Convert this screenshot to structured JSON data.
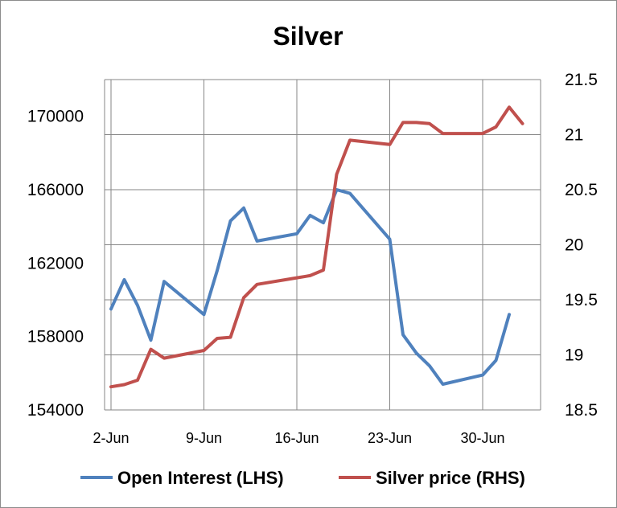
{
  "chart_data": {
    "type": "line",
    "title": "Silver",
    "grid": true,
    "legend_position": "bottom",
    "x_ticks": [
      "2-Jun",
      "9-Jun",
      "16-Jun",
      "23-Jun",
      "30-Jun"
    ],
    "y_left": {
      "ticks": [
        "154000",
        "158000",
        "162000",
        "166000",
        "170000"
      ],
      "range": [
        154000,
        172000
      ]
    },
    "y_right": {
      "ticks": [
        "18.5",
        "19",
        "19.5",
        "20",
        "20.5",
        "21",
        "21.5"
      ],
      "range": [
        18.5,
        21.5
      ]
    },
    "series": [
      {
        "name": "Open Interest (LHS)",
        "axis": "left",
        "color": "#4f81bd",
        "points": [
          {
            "x": "2-Jun",
            "y": 159500
          },
          {
            "x": "3-Jun",
            "y": 161100
          },
          {
            "x": "4-Jun",
            "y": 159700
          },
          {
            "x": "5-Jun",
            "y": 157800
          },
          {
            "x": "6-Jun",
            "y": 161000
          },
          {
            "x": "9-Jun",
            "y": 159200
          },
          {
            "x": "10-Jun",
            "y": 161600
          },
          {
            "x": "11-Jun",
            "y": 164300
          },
          {
            "x": "12-Jun",
            "y": 165000
          },
          {
            "x": "13-Jun",
            "y": 163200
          },
          {
            "x": "16-Jun",
            "y": 163600
          },
          {
            "x": "17-Jun",
            "y": 164600
          },
          {
            "x": "18-Jun",
            "y": 164200
          },
          {
            "x": "19-Jun",
            "y": 166000
          },
          {
            "x": "20-Jun",
            "y": 165800
          },
          {
            "x": "23-Jun",
            "y": 163300
          },
          {
            "x": "24-Jun",
            "y": 158100
          },
          {
            "x": "25-Jun",
            "y": 157100
          },
          {
            "x": "26-Jun",
            "y": 156400
          },
          {
            "x": "27-Jun",
            "y": 155400
          },
          {
            "x": "30-Jun",
            "y": 155900
          },
          {
            "x": "1-Jul",
            "y": 156700
          },
          {
            "x": "2-Jul",
            "y": 159200
          }
        ]
      },
      {
        "name": "Silver price (RHS)",
        "axis": "right",
        "color": "#c0504d",
        "points": [
          {
            "x": "2-Jun",
            "y": 18.71
          },
          {
            "x": "3-Jun",
            "y": 18.73
          },
          {
            "x": "4-Jun",
            "y": 18.77
          },
          {
            "x": "5-Jun",
            "y": 19.05
          },
          {
            "x": "6-Jun",
            "y": 18.97
          },
          {
            "x": "9-Jun",
            "y": 19.04
          },
          {
            "x": "10-Jun",
            "y": 19.15
          },
          {
            "x": "11-Jun",
            "y": 19.16
          },
          {
            "x": "12-Jun",
            "y": 19.52
          },
          {
            "x": "13-Jun",
            "y": 19.64
          },
          {
            "x": "16-Jun",
            "y": 19.7
          },
          {
            "x": "17-Jun",
            "y": 19.72
          },
          {
            "x": "18-Jun",
            "y": 19.77
          },
          {
            "x": "19-Jun",
            "y": 20.64
          },
          {
            "x": "20-Jun",
            "y": 20.95
          },
          {
            "x": "23-Jun",
            "y": 20.91
          },
          {
            "x": "24-Jun",
            "y": 21.11
          },
          {
            "x": "25-Jun",
            "y": 21.11
          },
          {
            "x": "26-Jun",
            "y": 21.1
          },
          {
            "x": "27-Jun",
            "y": 21.01
          },
          {
            "x": "30-Jun",
            "y": 21.01
          },
          {
            "x": "1-Jul",
            "y": 21.07
          },
          {
            "x": "2-Jul",
            "y": 21.25
          },
          {
            "x": "3-Jul",
            "y": 21.1
          }
        ]
      }
    ]
  }
}
